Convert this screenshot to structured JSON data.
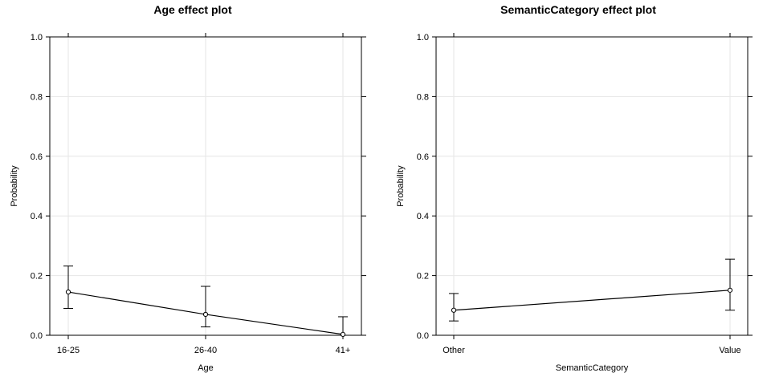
{
  "chart_data": [
    {
      "type": "line",
      "title": "Age effect plot",
      "xlabel": "Age",
      "ylabel": "Probability",
      "categories": [
        "16-25",
        "26-40",
        "41+"
      ],
      "values": [
        0.145,
        0.07,
        0.003
      ],
      "lower": [
        0.09,
        0.028,
        0.0
      ],
      "upper": [
        0.232,
        0.164,
        0.062
      ],
      "ylim": [
        0,
        1
      ],
      "yticks": [
        "0.0",
        "0.2",
        "0.4",
        "0.6",
        "0.8",
        "1.0"
      ],
      "grid": true
    },
    {
      "type": "line",
      "title": "SemanticCategory effect plot",
      "xlabel": "SemanticCategory",
      "ylabel": "Probability",
      "categories": [
        "Other",
        "Value"
      ],
      "values": [
        0.084,
        0.151
      ],
      "lower": [
        0.048,
        0.084
      ],
      "upper": [
        0.14,
        0.255
      ],
      "ylim": [
        0,
        1
      ],
      "yticks": [
        "0.0",
        "0.2",
        "0.4",
        "0.6",
        "0.8",
        "1.0"
      ],
      "grid": true
    }
  ]
}
